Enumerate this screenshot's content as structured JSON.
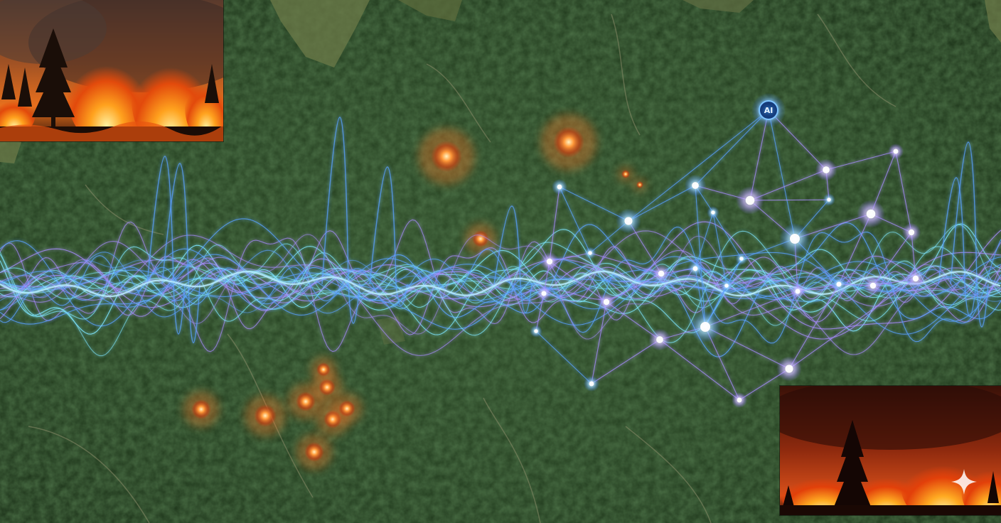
{
  "scene": {
    "ai_node_label": "AI",
    "colors": {
      "forest_dark": "#1c3118",
      "forest_mid": "#2f4f28",
      "clearing": "#6f7a4e",
      "signal_blue": "#5aa0ff",
      "signal_cyan": "#7fe6ff",
      "node_violet": "#a88cff",
      "ember": "#ff7a2a"
    },
    "icons": [
      "ai-node-icon",
      "sparkle-icon",
      "tree-icon",
      "fire-icon"
    ]
  }
}
